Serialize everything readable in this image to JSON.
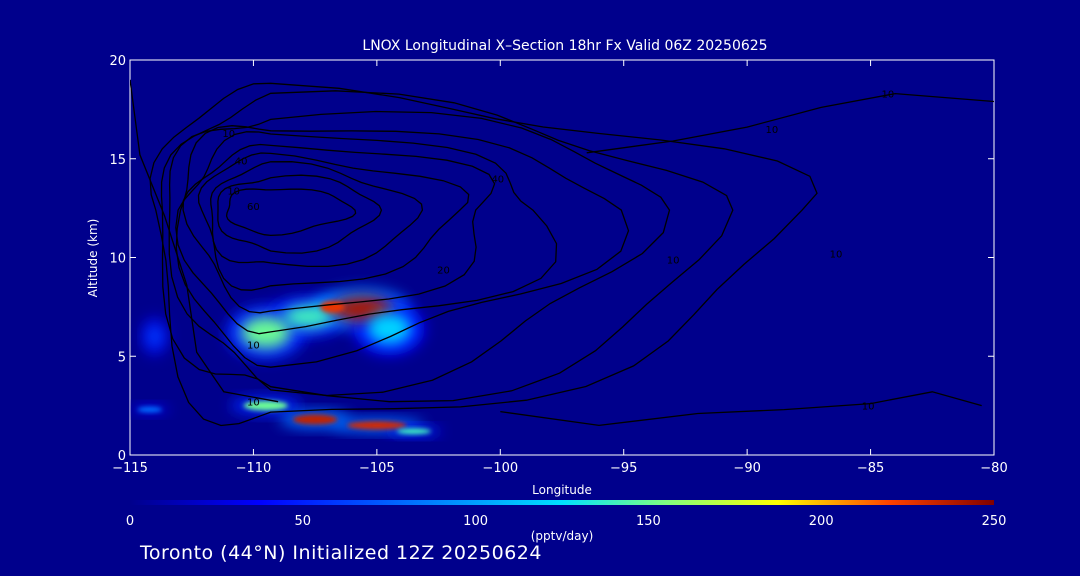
{
  "chart_data": {
    "type": "heatmap",
    "title": "LNOX Longitudinal X–Section 18hr  Fx Valid 06Z 20250625",
    "xlabel": "Longitude",
    "ylabel": "Altitude (km)",
    "xlim": [
      -115,
      -80
    ],
    "ylim": [
      0,
      20
    ],
    "x_ticks": [
      -115,
      -110,
      -105,
      -100,
      -95,
      -90,
      -85,
      -80
    ],
    "x_tick_labels": [
      "−115",
      "−110",
      "−105",
      "−100",
      "−95",
      "−90",
      "−85",
      "−80"
    ],
    "y_ticks": [
      0,
      5,
      10,
      15,
      20
    ],
    "y_tick_labels": [
      "0",
      "5",
      "10",
      "15",
      "20"
    ],
    "colorbar": {
      "label": "(pptv/day)",
      "min": 0,
      "max": 250,
      "ticks": [
        0,
        50,
        100,
        150,
        200,
        250
      ],
      "tick_labels": [
        "0",
        "50",
        "100",
        "150",
        "200",
        "250"
      ]
    },
    "heat_blobs": [
      {
        "lon": -109.5,
        "alt": 6.2,
        "rlon": 1.0,
        "ralt": 0.8,
        "value": 150
      },
      {
        "lon": -107.8,
        "alt": 7.0,
        "rlon": 1.0,
        "ralt": 0.6,
        "value": 140
      },
      {
        "lon": -105.6,
        "alt": 7.4,
        "rlon": 1.2,
        "ralt": 0.6,
        "value": 240
      },
      {
        "lon": -106.8,
        "alt": 7.5,
        "rlon": 0.5,
        "ralt": 0.3,
        "value": 225
      },
      {
        "lon": -104.5,
        "alt": 6.4,
        "rlon": 0.9,
        "ralt": 0.8,
        "value": 120
      },
      {
        "lon": -114.0,
        "alt": 6.0,
        "rlon": 0.35,
        "ralt": 0.6,
        "value": 60
      },
      {
        "lon": -114.2,
        "alt": 2.3,
        "rlon": 0.5,
        "ralt": 0.15,
        "value": 80
      },
      {
        "lon": -109.5,
        "alt": 2.5,
        "rlon": 0.9,
        "ralt": 0.25,
        "value": 150
      },
      {
        "lon": -107.5,
        "alt": 1.8,
        "rlon": 0.9,
        "ralt": 0.25,
        "value": 235
      },
      {
        "lon": -105.0,
        "alt": 1.5,
        "rlon": 1.2,
        "ralt": 0.2,
        "value": 230
      },
      {
        "lon": -103.5,
        "alt": 1.2,
        "rlon": 0.7,
        "ralt": 0.15,
        "value": 140
      }
    ],
    "contour_levels": [
      10,
      20,
      30,
      40,
      50,
      60,
      70,
      80,
      90,
      100
    ],
    "contour_labels": [
      {
        "text": "10",
        "lon": -111,
        "alt": 16.3
      },
      {
        "text": "40",
        "lon": -110.5,
        "alt": 14.9
      },
      {
        "text": "10",
        "lon": -110.8,
        "alt": 13.4
      },
      {
        "text": "60",
        "lon": -110.0,
        "alt": 12.6
      },
      {
        "text": "40",
        "lon": -100.1,
        "alt": 14.0
      },
      {
        "text": "20",
        "lon": -102.3,
        "alt": 9.4
      },
      {
        "text": "10",
        "lon": -93.0,
        "alt": 9.9
      },
      {
        "text": "10",
        "lon": -89.0,
        "alt": 16.5
      },
      {
        "text": "10",
        "lon": -84.3,
        "alt": 18.3
      },
      {
        "text": "10",
        "lon": -86.4,
        "alt": 10.2
      },
      {
        "text": "10",
        "lon": -110.0,
        "alt": 5.6
      },
      {
        "text": "10",
        "lon": -110.0,
        "alt": 2.7
      },
      {
        "text": "10",
        "lon": -85.1,
        "alt": 2.5
      }
    ]
  },
  "footer": {
    "station_text": "Toronto (44°N) Initialized 12Z 20250624"
  }
}
